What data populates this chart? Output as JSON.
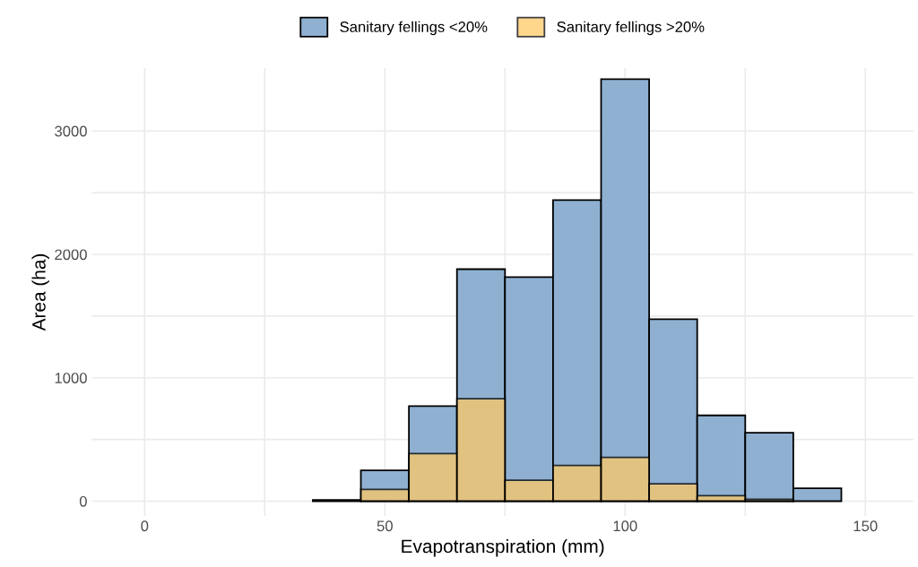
{
  "chart_data": {
    "type": "histogram",
    "xlabel": "Evapotranspiration (mm)",
    "ylabel": "Area (ha)",
    "bins": [
      -5,
      5,
      15,
      25,
      35,
      45,
      55,
      65,
      75,
      85,
      95,
      105,
      115,
      125,
      135,
      145,
      155
    ],
    "series": [
      {
        "name": "Sanitary fellings <20%",
        "color": "#8fb0d1",
        "values": [
          null,
          null,
          null,
          null,
          10,
          250,
          770,
          1880,
          1815,
          2440,
          3420,
          1475,
          695,
          555,
          105,
          null
        ]
      },
      {
        "name": "Sanitary fellings >20%",
        "color": "#fec966",
        "values": [
          null,
          null,
          null,
          null,
          null,
          95,
          385,
          830,
          170,
          290,
          355,
          140,
          45,
          15,
          null,
          null
        ]
      }
    ],
    "xlim": [
      -11,
      160
    ],
    "ylim": [
      -120,
      3510
    ],
    "xticks": [
      0,
      {
        "value": 25,
        "label": null
      },
      50,
      {
        "value": 75,
        "label": null
      },
      100,
      {
        "value": 125,
        "label": null
      },
      150
    ],
    "yticks": [
      0,
      {
        "value": 500,
        "label": null
      },
      1000,
      {
        "value": 1500,
        "label": null
      },
      2000,
      {
        "value": 2500,
        "label": null
      },
      3000
    ],
    "grid": true,
    "legend": "top"
  }
}
